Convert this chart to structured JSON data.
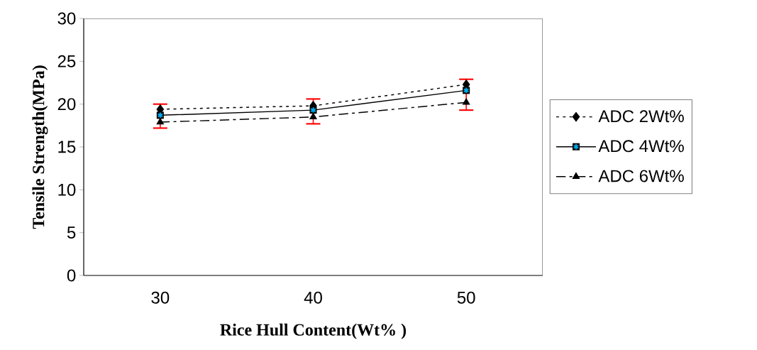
{
  "chart_data": {
    "type": "line",
    "xlabel": "Rice Hull Content(Wt% )",
    "ylabel": "Tensile Strength(MPa)",
    "categories": [
      "30",
      "40",
      "50"
    ],
    "series": [
      {
        "name": "ADC 2Wt%",
        "color": "#000000",
        "marker": "diamond",
        "line_style": "dotted",
        "values": [
          19.4,
          19.8,
          22.3
        ]
      },
      {
        "name": "ADC 4Wt%",
        "color": "#000000",
        "marker": "square",
        "line_style": "solid",
        "values": [
          18.7,
          19.3,
          21.6
        ],
        "errors": [
          [
            17.2,
            20.0
          ],
          [
            17.7,
            20.6
          ],
          [
            19.3,
            22.9
          ]
        ]
      },
      {
        "name": "ADC 6Wt%",
        "color": "#000000",
        "marker": "triangle",
        "line_style": "dashdot",
        "values": [
          17.9,
          18.5,
          20.2
        ]
      }
    ],
    "ylim": [
      0,
      30
    ],
    "yticks": [
      0,
      5,
      10,
      15,
      20,
      25,
      30
    ],
    "grid": false,
    "legend": "right"
  }
}
